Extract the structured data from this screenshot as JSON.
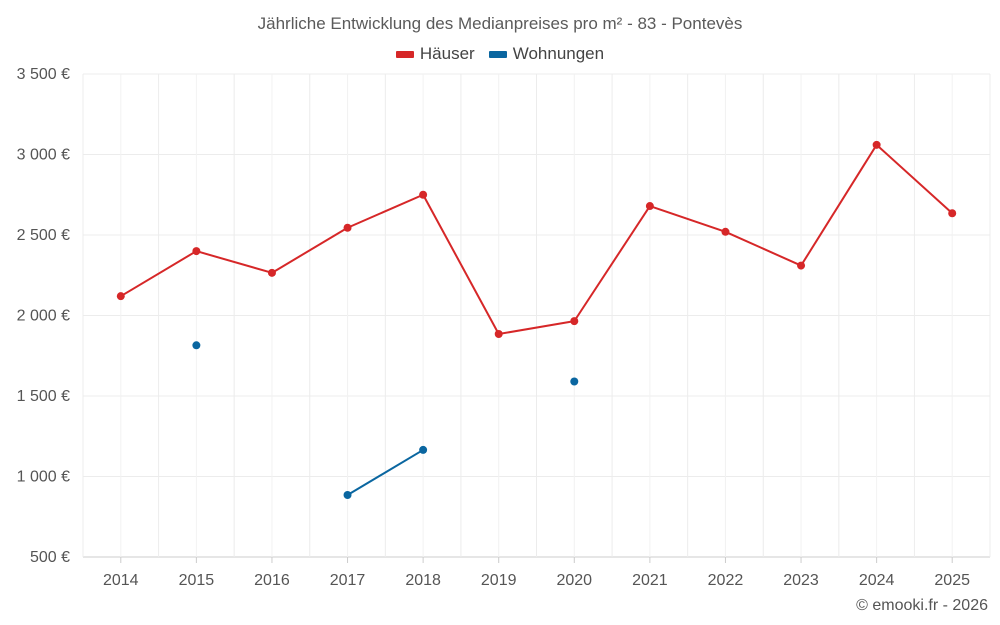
{
  "chart_data": {
    "type": "line",
    "title": "Jährliche Entwicklung des Medianpreises pro m² - 83 - Pontevès",
    "categories": [
      "2014",
      "2015",
      "2016",
      "2017",
      "2018",
      "2019",
      "2020",
      "2021",
      "2022",
      "2023",
      "2024",
      "2025"
    ],
    "ylim": [
      500,
      3500
    ],
    "yticks": [
      500,
      1000,
      1500,
      2000,
      2500,
      3000,
      3500
    ],
    "ytick_labels": [
      "500 €",
      "1 000 €",
      "1 500 €",
      "2 000 €",
      "2 500 €",
      "3 000 €",
      "3 500 €"
    ],
    "series": [
      {
        "name": "Häuser",
        "color": "#d62728",
        "values": [
          2120,
          2400,
          2265,
          2545,
          2750,
          1885,
          1965,
          2680,
          2520,
          2310,
          3060,
          2635
        ]
      },
      {
        "name": "Wohnungen",
        "color": "#0a66a0",
        "values": [
          null,
          1815,
          null,
          885,
          1165,
          null,
          1590,
          null,
          null,
          null,
          null,
          null
        ]
      }
    ],
    "grid": true,
    "legend_position": "top-center"
  },
  "credit": "© emooki.fr - 2026"
}
